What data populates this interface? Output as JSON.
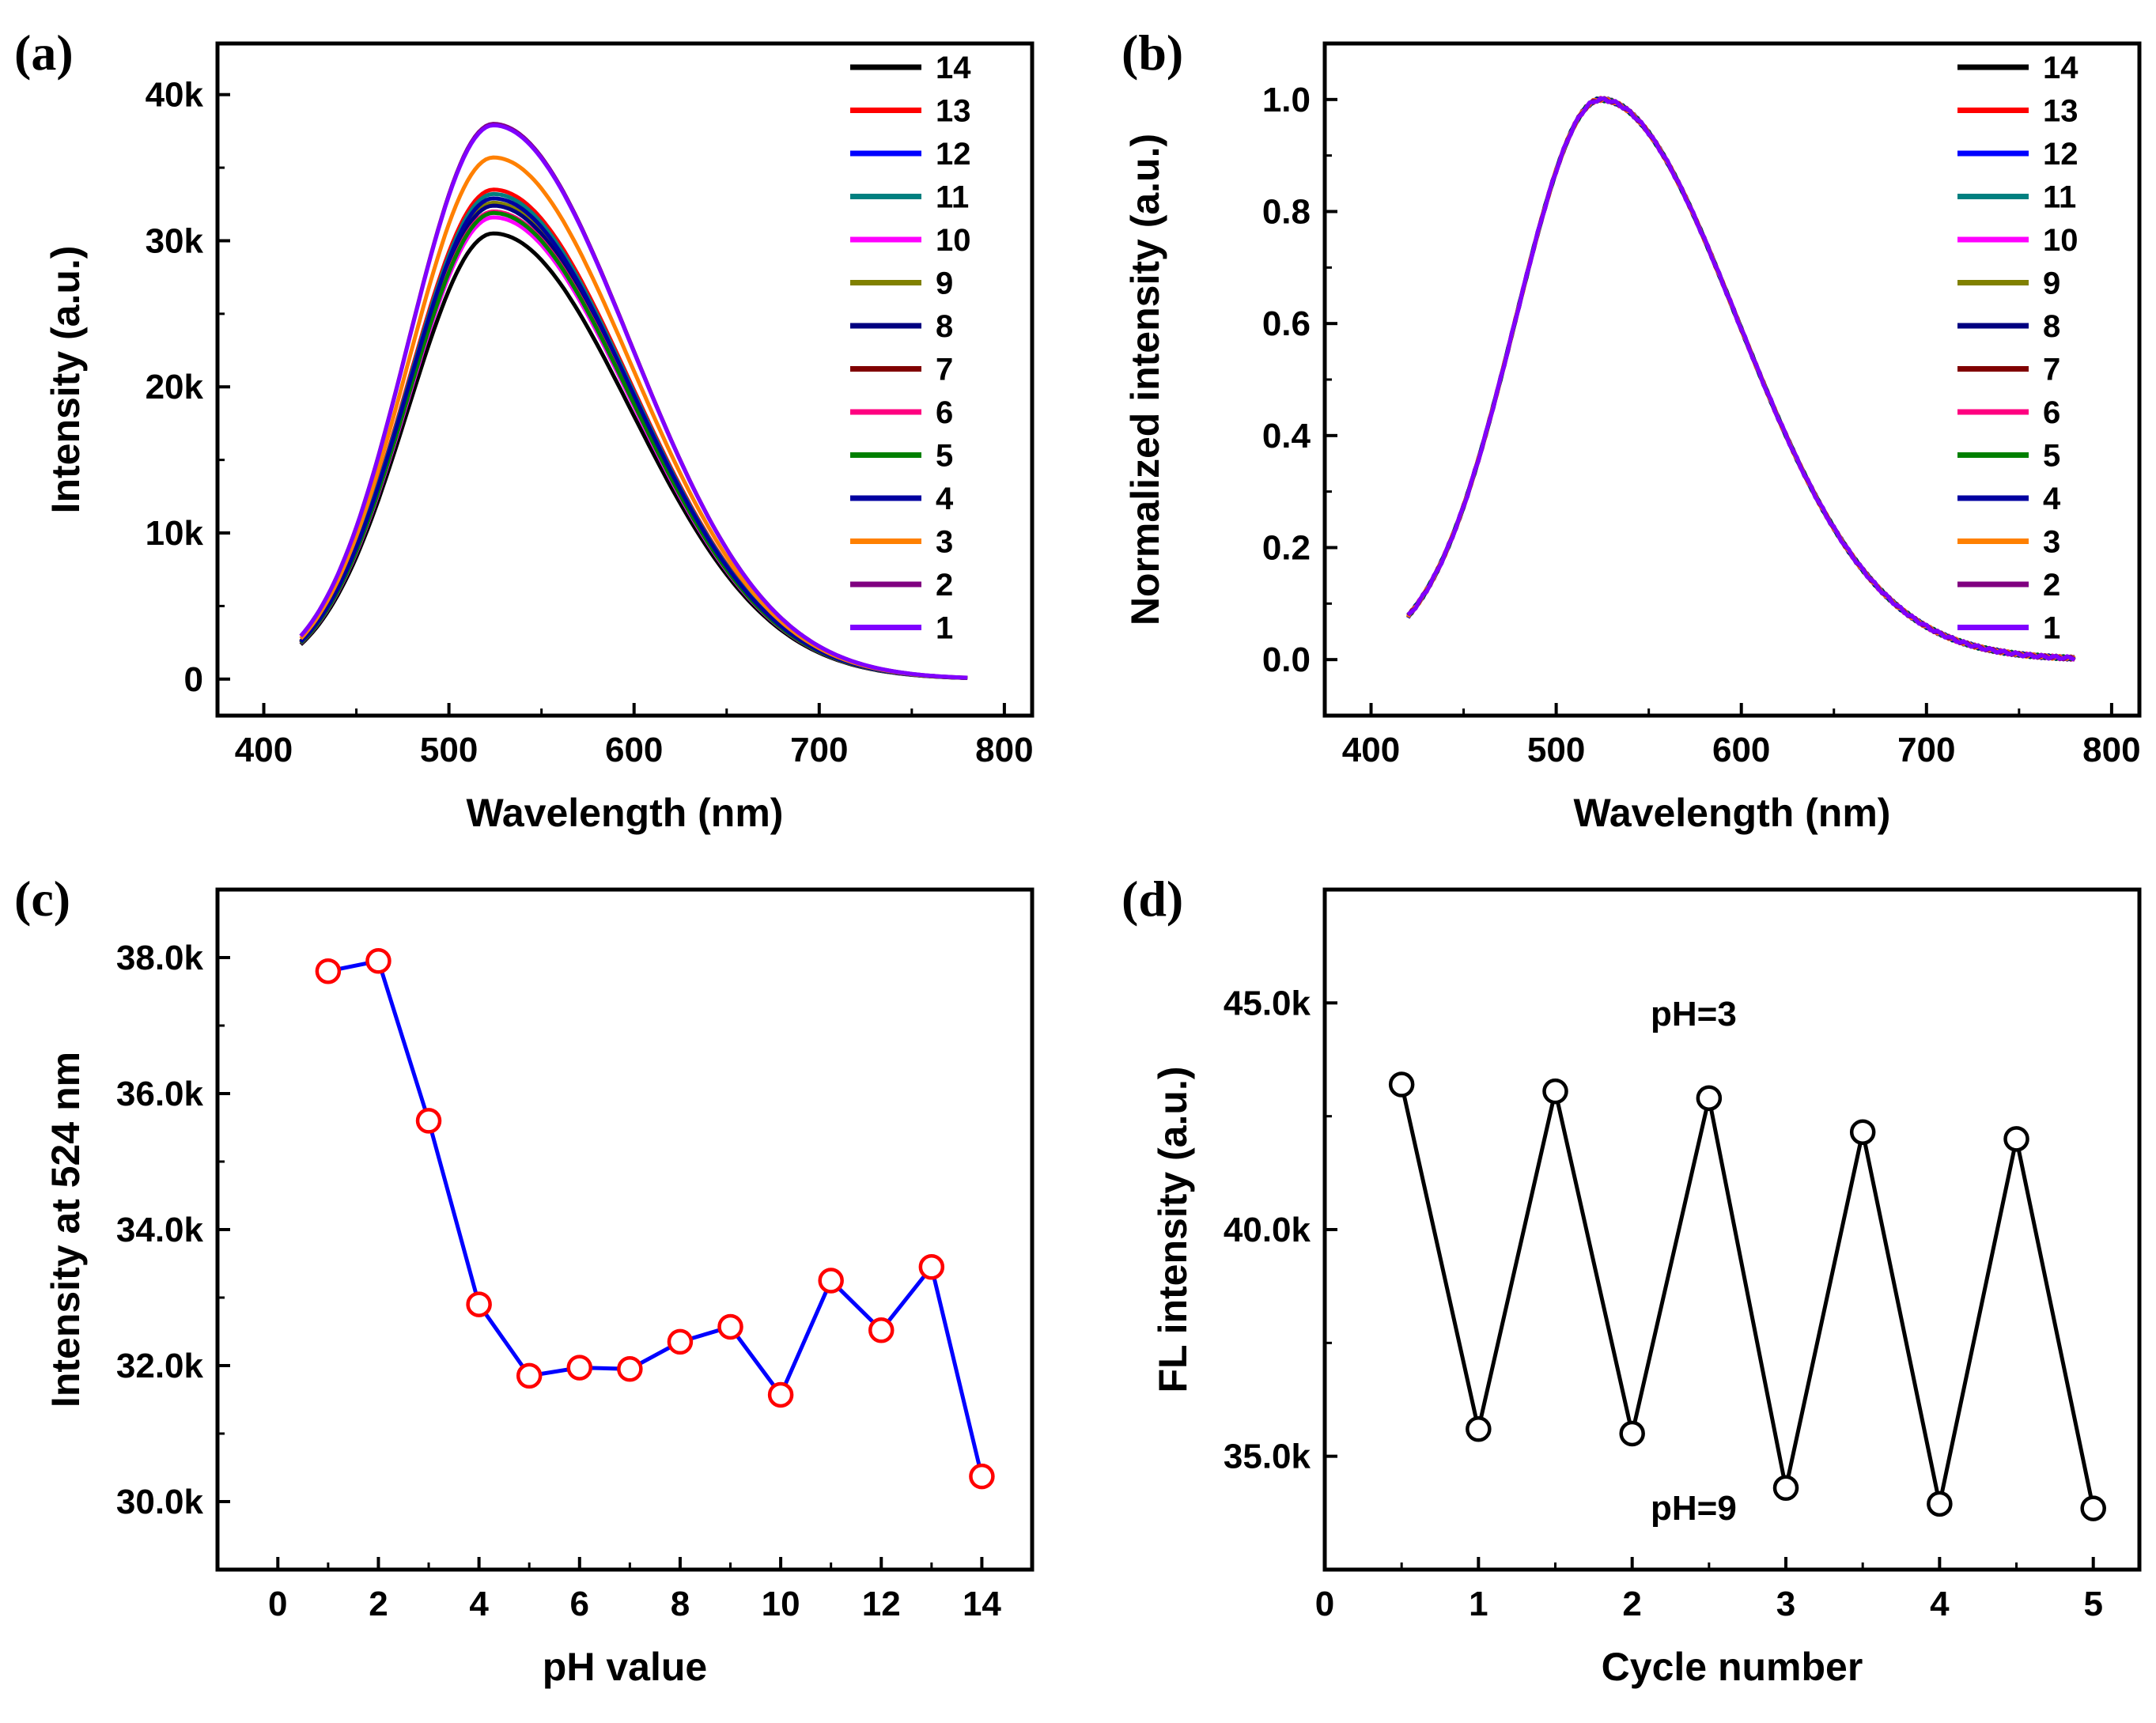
{
  "chart_data": [
    {
      "id": "a",
      "type": "line",
      "panel_label": "(a)",
      "xlabel": "Wavelength (nm)",
      "ylabel": "Intensity (a.u.)",
      "xlim": [
        375,
        815
      ],
      "ylim": [
        -2500,
        43500
      ],
      "xticks": [
        400,
        500,
        600,
        700,
        800
      ],
      "xtick_labels": [
        "400",
        "500",
        "600",
        "700",
        "800"
      ],
      "yticks": [
        0,
        10000,
        20000,
        30000,
        40000
      ],
      "ytick_labels": [
        "0",
        "10k",
        "20k",
        "30k",
        "40k"
      ],
      "legend_position": "top-right",
      "series": [
        {
          "name": "14",
          "color": "#000000",
          "peak": 30500
        },
        {
          "name": "13",
          "color": "#ff0000",
          "peak": 33500
        },
        {
          "name": "12",
          "color": "#0000ff",
          "peak": 32500
        },
        {
          "name": "11",
          "color": "#008080",
          "peak": 33200
        },
        {
          "name": "10",
          "color": "#ff00ff",
          "peak": 31600
        },
        {
          "name": "9",
          "color": "#808000",
          "peak": 32600
        },
        {
          "name": "8",
          "color": "#000080",
          "peak": 32400
        },
        {
          "name": "7",
          "color": "#800000",
          "peak": 32000
        },
        {
          "name": "6",
          "color": "#ff0080",
          "peak": 32000
        },
        {
          "name": "5",
          "color": "#008000",
          "peak": 31900
        },
        {
          "name": "4",
          "color": "#0000a0",
          "peak": 32900
        },
        {
          "name": "3",
          "color": "#ff8000",
          "peak": 35700
        },
        {
          "name": "2",
          "color": "#800080",
          "peak": 38000
        },
        {
          "name": "1",
          "color": "#8000ff",
          "peak": 37900
        }
      ]
    },
    {
      "id": "b",
      "type": "line",
      "panel_label": "(b)",
      "xlabel": "Wavelength (nm)",
      "ylabel": "Normalized intensity (a.u.)",
      "xlim": [
        375,
        815
      ],
      "ylim": [
        -0.1,
        1.1
      ],
      "xticks": [
        400,
        500,
        600,
        700,
        800
      ],
      "xtick_labels": [
        "400",
        "500",
        "600",
        "700",
        "800"
      ],
      "yticks": [
        0,
        0.2,
        0.4,
        0.6,
        0.8,
        1.0
      ],
      "ytick_labels": [
        "0.0",
        "0.2",
        "0.4",
        "0.6",
        "0.8",
        "1.0"
      ],
      "legend_position": "top-right",
      "series": [
        {
          "name": "14",
          "color": "#000000"
        },
        {
          "name": "13",
          "color": "#ff0000"
        },
        {
          "name": "12",
          "color": "#0000ff"
        },
        {
          "name": "11",
          "color": "#008080"
        },
        {
          "name": "10",
          "color": "#ff00ff"
        },
        {
          "name": "9",
          "color": "#808000"
        },
        {
          "name": "8",
          "color": "#000080"
        },
        {
          "name": "7",
          "color": "#800000"
        },
        {
          "name": "6",
          "color": "#ff0080"
        },
        {
          "name": "5",
          "color": "#008000"
        },
        {
          "name": "4",
          "color": "#0000a0"
        },
        {
          "name": "3",
          "color": "#ff8000"
        },
        {
          "name": "2",
          "color": "#800080"
        },
        {
          "name": "1",
          "color": "#8000ff"
        }
      ]
    },
    {
      "id": "c",
      "type": "line",
      "panel_label": "(c)",
      "xlabel": "pH value",
      "ylabel": "Intensity at 524 nm",
      "xlim": [
        -1.2,
        15.0
      ],
      "ylim": [
        29000,
        39000
      ],
      "xticks": [
        0,
        2,
        4,
        6,
        8,
        10,
        12,
        14
      ],
      "xtick_labels": [
        "0",
        "2",
        "4",
        "6",
        "8",
        "10",
        "12",
        "14"
      ],
      "yticks": [
        30000,
        32000,
        34000,
        36000,
        38000
      ],
      "ytick_labels": [
        "30.0k",
        "32.0k",
        "34.0k",
        "36.0k",
        "38.0k"
      ],
      "line_color": "#0000ff",
      "marker_color": "#ff0000",
      "x": [
        1,
        2,
        3,
        4,
        5,
        6,
        7,
        8,
        9,
        10,
        11,
        12,
        13,
        14
      ],
      "y": [
        37800,
        37950,
        35600,
        32900,
        31850,
        31970,
        31950,
        32350,
        32570,
        31570,
        33250,
        32520,
        33450,
        30370
      ]
    },
    {
      "id": "d",
      "type": "line",
      "panel_label": "(d)",
      "xlabel": "Cycle number",
      "ylabel": "FL intensity (a.u.)",
      "xlim": [
        0,
        5.3
      ],
      "ylim": [
        32500,
        47500
      ],
      "xticks": [
        0,
        1,
        2,
        3,
        4,
        5
      ],
      "xtick_labels": [
        "0",
        "1",
        "2",
        "3",
        "4",
        "5"
      ],
      "yticks": [
        35000,
        40000,
        45000
      ],
      "ytick_labels": [
        "35.0k",
        "40.0k",
        "45.0k"
      ],
      "line_color": "#000000",
      "marker_color": "#000000",
      "x": [
        0.5,
        1,
        1.5,
        2,
        2.5,
        3,
        3.5,
        4,
        4.5,
        5
      ],
      "y": [
        43200,
        35600,
        43050,
        35500,
        42900,
        34300,
        42150,
        33950,
        42000,
        33850
      ],
      "annotations": [
        {
          "text": "pH=3",
          "x": 2.4,
          "y": 44500
        },
        {
          "text": "pH=9",
          "x": 2.4,
          "y": 33600
        }
      ]
    }
  ]
}
